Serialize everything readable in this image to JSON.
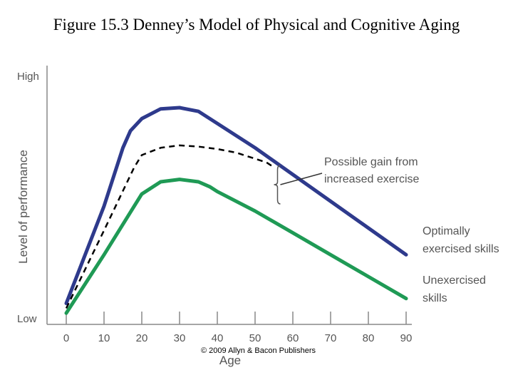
{
  "title": "Figure 15.3 Denney’s Model of Physical and Cognitive Aging",
  "credit": "© 2009 Allyn & Bacon Publishers",
  "chart_data": {
    "type": "line",
    "xlabel": "Age",
    "ylabel": "Level of performance",
    "xlim": [
      0,
      90
    ],
    "xticks": [
      0,
      10,
      20,
      30,
      40,
      50,
      60,
      70,
      80,
      90
    ],
    "ylim": [
      0,
      100
    ],
    "y_tick_labels": {
      "high": "High",
      "low": "Low"
    },
    "grid": false,
    "series": [
      {
        "name": "Optimally exercised skills",
        "label_lines": [
          "Optimally",
          "exercised skills"
        ],
        "color": "#2e3a8c",
        "style": "solid",
        "x": [
          0,
          10,
          15,
          17,
          20,
          25,
          30,
          35,
          40,
          50,
          60,
          70,
          80,
          90
        ],
        "y": [
          6,
          46,
          70,
          77,
          82,
          86,
          86.5,
          85,
          80,
          70,
          59,
          48,
          37,
          26
        ]
      },
      {
        "name": "Unexercised skills",
        "label_lines": [
          "Unexercised",
          "skills"
        ],
        "color": "#1f9a55",
        "style": "solid",
        "x": [
          0,
          10,
          18,
          20,
          25,
          30,
          35,
          38,
          40,
          50,
          60,
          70,
          80,
          90
        ],
        "y": [
          2,
          26,
          46,
          51,
          56,
          57,
          56,
          54,
          52,
          44,
          35,
          26,
          17,
          8
        ]
      },
      {
        "name": "Possible gain from increased exercise",
        "color": "#000000",
        "style": "dashed",
        "x": [
          0,
          10,
          18,
          20,
          25,
          30,
          35,
          40,
          45,
          50,
          53,
          55
        ],
        "y": [
          4,
          36,
          62,
          67,
          70,
          71,
          70.5,
          69.5,
          68,
          65.5,
          64,
          62
        ]
      }
    ],
    "annotations": [
      {
        "text_lines": [
          "Possible gain from",
          "increased exercise"
        ],
        "bracket_x": 55,
        "bracket_y": [
          46,
          60
        ],
        "arrow_from_x": 68,
        "arrow_from_y": 61
      }
    ]
  }
}
